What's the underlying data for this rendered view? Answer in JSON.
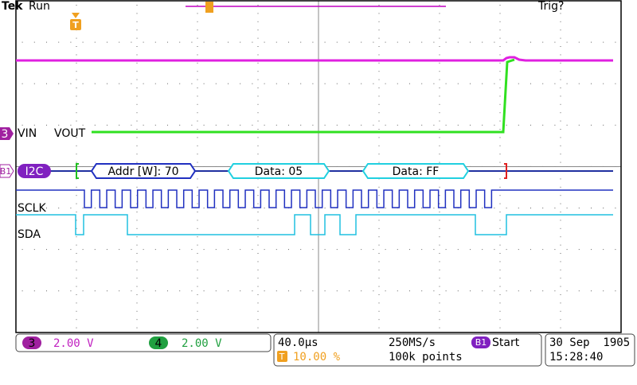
{
  "header": {
    "brand": "Tek",
    "status": "Run",
    "trigger_state": "Trig?"
  },
  "markers": {
    "trigger": "T",
    "channel": "3",
    "bus": "B1"
  },
  "channels": {
    "vin": "VIN",
    "vout": "VOUT"
  },
  "bus": {
    "protocol": "I2C",
    "packets": [
      "Addr [W]: 70",
      "Data: 05",
      "Data: FF"
    ],
    "signals": [
      "SCLK",
      "SDA"
    ]
  },
  "status_bar": {
    "ch3_label": "3",
    "ch3_scale": "2.00 V",
    "ch4_label": "4",
    "ch4_scale": "2.00 V",
    "timebase": "40.0µs",
    "sample_rate": "250MS/s",
    "trigger_source": "B1",
    "trigger_type": "Start",
    "trigger_marker": "T",
    "trigger_position": "10.00 %",
    "record_length": "100k points",
    "date": "30 Sep  1905",
    "time": "15:28:40"
  }
}
